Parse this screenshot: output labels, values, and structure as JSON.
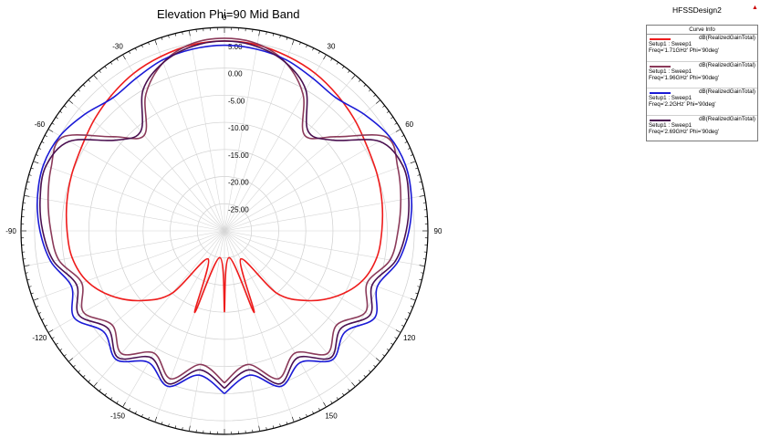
{
  "title": "Elevation Phi=90 Mid Band",
  "design_name": "HFSSDesign2",
  "design_marker": "▲",
  "legend": {
    "header": "Curve Info",
    "items": [
      {
        "name": "dB(RealizedGainTotal)",
        "setup": "Setup1 : Sweep1",
        "freq": "Freq='1.71GHz' Phi='90deg'",
        "color": "#ee1c1c"
      },
      {
        "name": "dB(RealizedGainTotal)",
        "setup": "Setup1 : Sweep1",
        "freq": "Freq='1.96GHz' Phi='90deg'",
        "color": "#8b3a5a"
      },
      {
        "name": "dB(RealizedGainTotal)",
        "setup": "Setup1 : Sweep1",
        "freq": "Freq='2.2GHz' Phi='90deg'",
        "color": "#1a1ad6"
      },
      {
        "name": "dB(RealizedGainTotal)",
        "setup": "Setup1 : Sweep1",
        "freq": "Freq='2.69GHz' Phi='90deg'",
        "color": "#4a1050"
      }
    ]
  },
  "chart_data": {
    "type": "polar",
    "title": "Elevation Phi=90 Mid Band",
    "r_range": [
      -30,
      7.5
    ],
    "radial_ticks": [
      -25,
      -20,
      -15,
      -10,
      -5,
      0,
      5
    ],
    "radial_tick_labels": [
      "-25.00",
      "-20.00",
      "-15.00",
      "-10.00",
      "-5.00",
      "0.00",
      "5.00"
    ],
    "angle_ticks": [
      0,
      30,
      60,
      90,
      120,
      150,
      180,
      -150,
      -120,
      -90,
      -60,
      -30
    ],
    "angle_tick_labels": [
      "0",
      "30",
      "60",
      "90",
      "120",
      "150",
      "-180",
      "-150",
      "-120",
      "-90",
      "-60",
      "-30"
    ],
    "grid": true,
    "legend_position": "top-right",
    "series": [
      {
        "name": "dB(RealizedGainTotal)",
        "color": "#ee1c1c",
        "theta": [
          -180,
          -170,
          -160,
          -150,
          -140,
          -130,
          -120,
          -110,
          -100,
          -90,
          -80,
          -70,
          -60,
          -50,
          -40,
          -30,
          -20,
          -10,
          0,
          10,
          20,
          30,
          40,
          50,
          60,
          70,
          80,
          90,
          100,
          110,
          120,
          130,
          140,
          150,
          160,
          170,
          180
        ],
        "r": [
          -15,
          -25,
          -14,
          -24,
          -15,
          -10,
          -6,
          -3,
          -1.5,
          -1,
          -0.5,
          0,
          0.5,
          1.5,
          2.5,
          3.5,
          4.2,
          4.8,
          5,
          4.8,
          4.2,
          3.5,
          2.5,
          1.5,
          0.5,
          0,
          -0.5,
          -1,
          -1.5,
          -3,
          -6,
          -10,
          -15,
          -24,
          -14,
          -25,
          -15
        ]
      },
      {
        "name": "dB(RealizedGainTotal)",
        "color": "#8b3a5a",
        "theta": [
          -180,
          -170,
          -160,
          -150,
          -140,
          -130,
          -120,
          -110,
          -100,
          -90,
          -80,
          -70,
          -60,
          -50,
          -40,
          -30,
          -20,
          -10,
          0,
          10,
          20,
          30,
          40,
          50,
          60,
          70,
          80,
          90,
          100,
          110,
          120,
          130,
          140,
          150,
          160,
          170,
          180
        ],
        "r": [
          -2,
          -5,
          -1,
          -4,
          -0.5,
          -3,
          0,
          -2,
          1,
          2,
          3,
          4,
          4.5,
          -3,
          -7,
          -1,
          3,
          5,
          5.5,
          5,
          3,
          -1,
          -7,
          -3,
          4.5,
          4,
          3,
          2,
          1,
          -2,
          0,
          -3,
          -0.5,
          -4,
          -1,
          -5,
          -2
        ]
      },
      {
        "name": "dB(RealizedGainTotal)",
        "color": "#1a1ad6",
        "theta": [
          -180,
          -170,
          -160,
          -150,
          -140,
          -130,
          -120,
          -110,
          -100,
          -90,
          -80,
          -70,
          -60,
          -50,
          -40,
          -30,
          -20,
          -10,
          0,
          10,
          20,
          30,
          40,
          50,
          60,
          70,
          80,
          90,
          100,
          110,
          120,
          130,
          140,
          150,
          160,
          170,
          180
        ],
        "r": [
          0,
          -3,
          0.5,
          -2,
          1,
          -1,
          2,
          0,
          2.5,
          4,
          5,
          5.5,
          5,
          3.5,
          2,
          2.5,
          3.5,
          4,
          4.2,
          4,
          3.5,
          2.5,
          2,
          3.5,
          5,
          5.5,
          5,
          4,
          2.5,
          0,
          2,
          -1,
          1,
          -2,
          0.5,
          -3,
          0
        ]
      },
      {
        "name": "dB(RealizedGainTotal)",
        "color": "#4a1050",
        "theta": [
          -180,
          -170,
          -160,
          -150,
          -140,
          -130,
          -120,
          -110,
          -100,
          -90,
          -80,
          -70,
          -60,
          -50,
          -40,
          -30,
          -20,
          -10,
          0,
          10,
          20,
          30,
          40,
          50,
          60,
          70,
          80,
          90,
          100,
          110,
          120,
          130,
          140,
          150,
          160,
          170,
          180
        ],
        "r": [
          -1,
          -4,
          0,
          -3,
          0.5,
          -2,
          1,
          -1,
          2,
          3.5,
          4.5,
          5,
          3,
          -4,
          -6,
          0,
          3,
          4.5,
          5,
          4.5,
          3,
          0,
          -6,
          -4,
          3,
          5,
          4.5,
          3.5,
          2,
          -1,
          1,
          -2,
          0.5,
          -3,
          0,
          -4,
          -1
        ]
      }
    ]
  }
}
